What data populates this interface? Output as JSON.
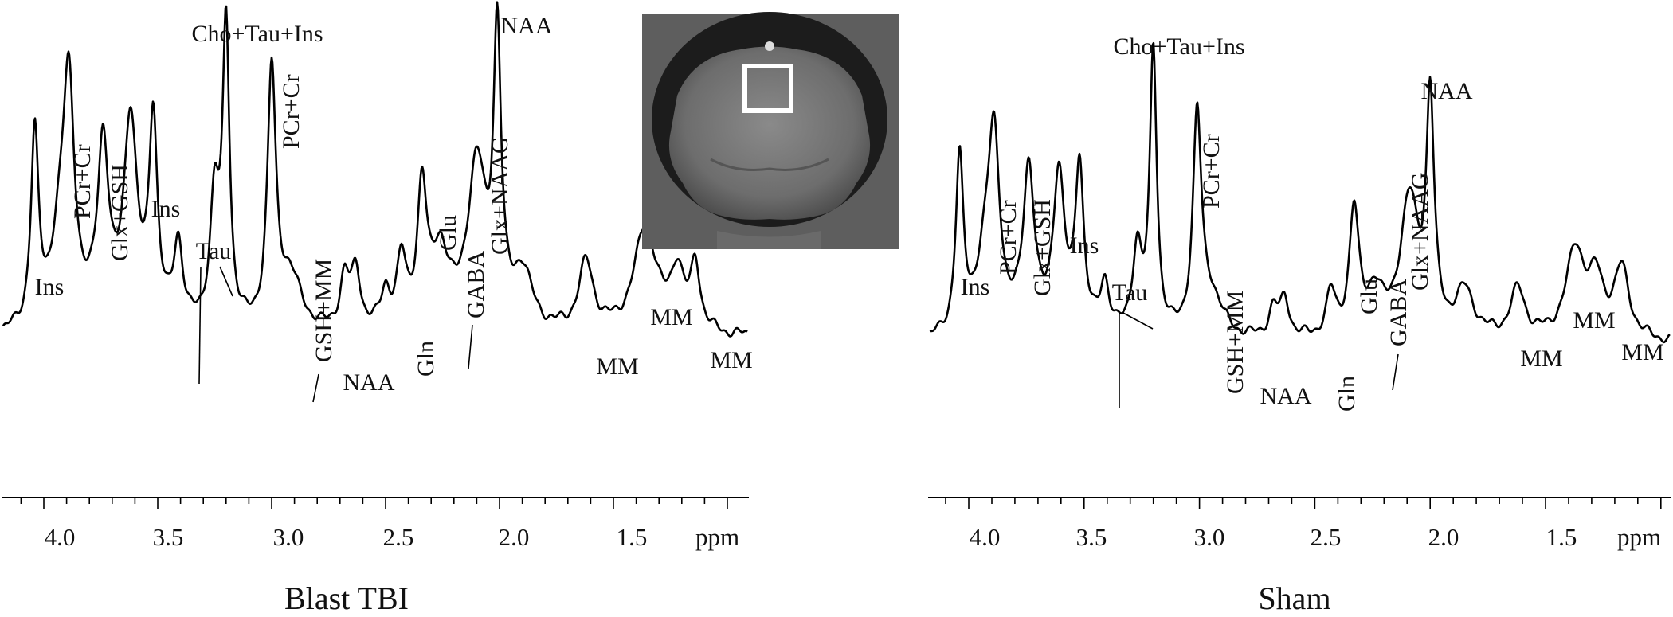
{
  "chart_data": [
    {
      "type": "line",
      "title": "Blast TBI",
      "xlabel": "ppm",
      "xlim": [
        4.3,
        1.0
      ],
      "x_reversed": true,
      "xticks": [
        4.0,
        3.5,
        3.0,
        2.5,
        2.0,
        1.5
      ],
      "xtick_labels": [
        "4.0",
        "3.5",
        "3.0",
        "2.5",
        "2.0",
        "1.5"
      ],
      "grid": false,
      "line_color": "#000000",
      "series": [
        {
          "peaks": [
            {
              "ppm": 4.3,
              "a": 0.0,
              "w": 0.0
            },
            {
              "ppm": 4.04,
              "a": 0.64,
              "w": 0.02
            },
            {
              "ppm": 3.93,
              "a": 0.26,
              "w": 0.05
            },
            {
              "ppm": 3.89,
              "a": 0.74,
              "w": 0.03
            },
            {
              "ppm": 3.74,
              "a": 0.61,
              "w": 0.03
            },
            {
              "ppm": 3.62,
              "a": 0.7,
              "w": 0.035
            },
            {
              "ppm": 3.52,
              "a": 0.69,
              "w": 0.022
            },
            {
              "ppm": 3.41,
              "a": 0.28,
              "w": 0.025
            },
            {
              "ppm": 3.25,
              "a": 0.43,
              "w": 0.025
            },
            {
              "ppm": 3.2,
              "a": 1.0,
              "w": 0.018
            },
            {
              "ppm": 3.0,
              "a": 0.85,
              "w": 0.022
            },
            {
              "ppm": 2.92,
              "a": 0.18,
              "w": 0.06
            },
            {
              "ppm": 2.68,
              "a": 0.17,
              "w": 0.025
            },
            {
              "ppm": 2.63,
              "a": 0.19,
              "w": 0.025
            },
            {
              "ppm": 2.5,
              "a": 0.12,
              "w": 0.025
            },
            {
              "ppm": 2.43,
              "a": 0.22,
              "w": 0.025
            },
            {
              "ppm": 2.34,
              "a": 0.46,
              "w": 0.025
            },
            {
              "ppm": 2.26,
              "a": 0.25,
              "w": 0.045
            },
            {
              "ppm": 2.1,
              "a": 0.55,
              "w": 0.05
            },
            {
              "ppm": 2.01,
              "a": 0.95,
              "w": 0.02
            },
            {
              "ppm": 1.9,
              "a": 0.19,
              "w": 0.05
            },
            {
              "ppm": 1.62,
              "a": 0.23,
              "w": 0.04
            },
            {
              "ppm": 1.36,
              "a": 0.36,
              "w": 0.06
            },
            {
              "ppm": 1.22,
              "a": 0.2,
              "w": 0.035
            },
            {
              "ppm": 1.14,
              "a": 0.22,
              "w": 0.025
            }
          ]
        }
      ],
      "peak_labels": [
        "Ins",
        "PCr+Cr",
        "Glx+GSH",
        "Ins",
        "Tau",
        "Cho+Tau+Ins",
        "PCr+Cr",
        "GSH+MM",
        "NAA",
        "Gln",
        "Glu",
        "GABA",
        "Glx+NAAG",
        "NAA",
        "MM",
        "MM",
        "MM"
      ]
    },
    {
      "type": "line",
      "title": "Sham",
      "xlabel": "ppm",
      "xlim": [
        4.3,
        1.0
      ],
      "x_reversed": true,
      "xticks": [
        4.0,
        3.5,
        3.0,
        2.5,
        2.0,
        1.5
      ],
      "xtick_labels": [
        "4.0",
        "3.5",
        "3.0",
        "2.5",
        "2.0",
        "1.5"
      ],
      "grid": false,
      "line_color": "#000000",
      "series": [
        {
          "peaks": [
            {
              "ppm": 4.04,
              "a": 0.61,
              "w": 0.02
            },
            {
              "ppm": 3.93,
              "a": 0.23,
              "w": 0.05
            },
            {
              "ppm": 3.89,
              "a": 0.62,
              "w": 0.03
            },
            {
              "ppm": 3.74,
              "a": 0.58,
              "w": 0.03
            },
            {
              "ppm": 3.61,
              "a": 0.56,
              "w": 0.03
            },
            {
              "ppm": 3.52,
              "a": 0.59,
              "w": 0.022
            },
            {
              "ppm": 3.41,
              "a": 0.18,
              "w": 0.025
            },
            {
              "ppm": 3.27,
              "a": 0.3,
              "w": 0.025
            },
            {
              "ppm": 3.2,
              "a": 1.0,
              "w": 0.018
            },
            {
              "ppm": 3.01,
              "a": 0.75,
              "w": 0.022
            },
            {
              "ppm": 2.95,
              "a": 0.14,
              "w": 0.06
            },
            {
              "ppm": 2.68,
              "a": 0.1,
              "w": 0.025
            },
            {
              "ppm": 2.63,
              "a": 0.13,
              "w": 0.025
            },
            {
              "ppm": 2.43,
              "a": 0.15,
              "w": 0.025
            },
            {
              "ppm": 2.33,
              "a": 0.44,
              "w": 0.025
            },
            {
              "ppm": 2.24,
              "a": 0.15,
              "w": 0.04
            },
            {
              "ppm": 2.09,
              "a": 0.48,
              "w": 0.05
            },
            {
              "ppm": 2.0,
              "a": 0.8,
              "w": 0.02
            },
            {
              "ppm": 1.85,
              "a": 0.16,
              "w": 0.05
            },
            {
              "ppm": 1.62,
              "a": 0.17,
              "w": 0.04
            },
            {
              "ppm": 1.37,
              "a": 0.31,
              "w": 0.05
            },
            {
              "ppm": 1.28,
              "a": 0.18,
              "w": 0.04
            },
            {
              "ppm": 1.17,
              "a": 0.24,
              "w": 0.04
            }
          ]
        }
      ],
      "peak_labels": [
        "Ins",
        "PCr+Cr",
        "Glx+GSH",
        "Ins",
        "Tau",
        "Cho+Tau+Ins",
        "PCr+Cr",
        "GSH+MM",
        "NAA",
        "Gln",
        "Glu",
        "GABA",
        "Glx+NAAG",
        "NAA",
        "MM",
        "MM",
        "MM"
      ]
    }
  ],
  "inset": {
    "kind": "MRI brain image with voxel marker",
    "marker_color": "#ffffff"
  }
}
